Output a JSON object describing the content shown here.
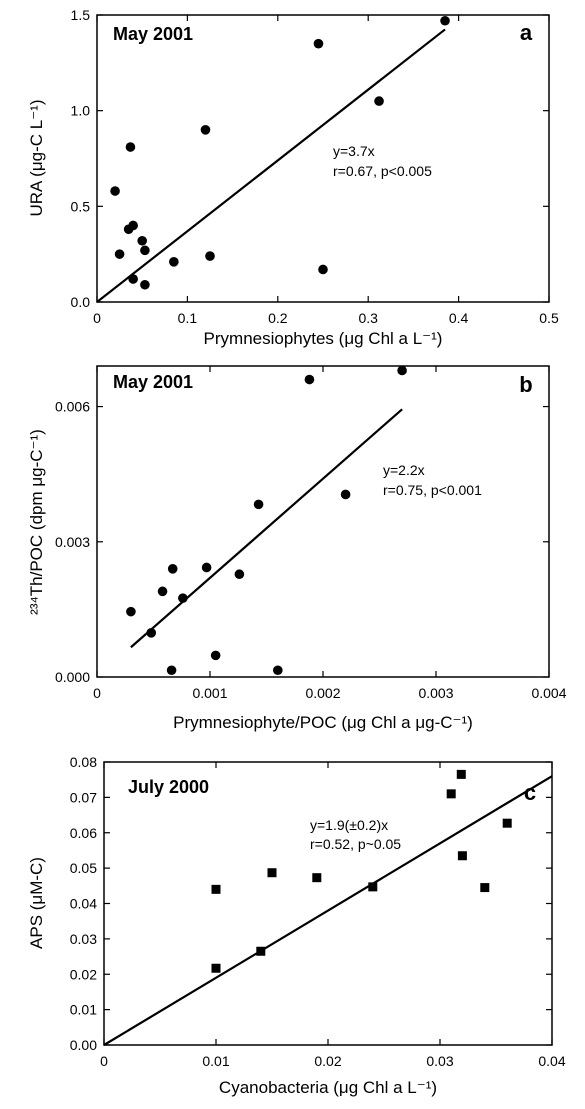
{
  "chart_data": [
    {
      "id": "a",
      "type": "scatter",
      "panel_letter": "a",
      "date_label": "May 2001",
      "xlabel": "Prymnesiophytes (μg Chl a L⁻¹)",
      "ylabel": "URA (μg-C L⁻¹)",
      "xlim": [
        0,
        0.5
      ],
      "ylim": [
        0,
        1.5
      ],
      "xticks": [
        0,
        0.1,
        0.2,
        0.3,
        0.4,
        0.5
      ],
      "xtick_labels": [
        "0",
        "0.1",
        "0.2",
        "0.3",
        "0.4",
        "0.5"
      ],
      "yticks": [
        0,
        0.5,
        1.0,
        1.5
      ],
      "ytick_labels": [
        "0.0",
        "0.5",
        "1.0",
        "1.5"
      ],
      "marker": "circle",
      "points": [
        [
          0.02,
          0.58
        ],
        [
          0.025,
          0.25
        ],
        [
          0.035,
          0.38
        ],
        [
          0.037,
          0.81
        ],
        [
          0.04,
          0.12
        ],
        [
          0.04,
          0.4
        ],
        [
          0.05,
          0.32
        ],
        [
          0.053,
          0.27
        ],
        [
          0.053,
          0.09
        ],
        [
          0.085,
          0.21
        ],
        [
          0.12,
          0.9
        ],
        [
          0.125,
          0.24
        ],
        [
          0.245,
          1.35
        ],
        [
          0.25,
          0.17
        ],
        [
          0.312,
          1.05
        ],
        [
          0.385,
          1.47
        ]
      ],
      "fit": {
        "slope": 3.7,
        "x_range": [
          0,
          0.385
        ]
      },
      "annotation": [
        "y=3.7x",
        "r=0.67, p<0.005"
      ]
    },
    {
      "id": "b",
      "type": "scatter",
      "panel_letter": "b",
      "date_label": "May 2001",
      "xlabel": "Prymnesiophyte/POC (μg Chl a μg-C⁻¹)",
      "ylabel": "²³⁴Th/POC (dpm μg-C⁻¹)",
      "xlim": [
        0,
        0.004
      ],
      "ylim": [
        0,
        0.0069
      ],
      "xticks": [
        0,
        0.001,
        0.002,
        0.003,
        0.004
      ],
      "xtick_labels": [
        "0",
        "0.001",
        "0.002",
        "0.003",
        "0.004"
      ],
      "yticks": [
        0,
        0.003,
        0.006
      ],
      "ytick_labels": [
        "0.000",
        "0.003",
        "0.006"
      ],
      "marker": "circle",
      "points": [
        [
          0.0003,
          0.00145
        ],
        [
          0.00048,
          0.00098
        ],
        [
          0.00058,
          0.0019
        ],
        [
          0.00066,
          0.00015
        ],
        [
          0.00067,
          0.0024
        ],
        [
          0.00076,
          0.00175
        ],
        [
          0.00097,
          0.00243
        ],
        [
          0.00105,
          0.00048
        ],
        [
          0.00126,
          0.00228
        ],
        [
          0.00143,
          0.00383
        ],
        [
          0.0016,
          0.00015
        ],
        [
          0.00188,
          0.0066
        ],
        [
          0.0022,
          0.00405
        ],
        [
          0.0027,
          0.0068
        ]
      ],
      "fit": {
        "slope": 2.2,
        "x_range": [
          0.0003,
          0.0027
        ]
      },
      "annotation": [
        "y=2.2x",
        "r=0.75, p<0.001"
      ]
    },
    {
      "id": "c",
      "type": "scatter",
      "panel_letter": "c",
      "date_label": "July 2000",
      "xlabel": "Cyanobacteria (μg Chl a L⁻¹)",
      "ylabel": "APS (μM-C)",
      "xlim": [
        0,
        0.04
      ],
      "ylim": [
        0,
        0.08
      ],
      "xticks": [
        0,
        0.01,
        0.02,
        0.03,
        0.04
      ],
      "xtick_labels": [
        "0",
        "0.01",
        "0.02",
        "0.03",
        "0.04"
      ],
      "yticks": [
        0,
        0.01,
        0.02,
        0.03,
        0.04,
        0.05,
        0.06,
        0.07,
        0.08
      ],
      "ytick_labels": [
        "0.00",
        "0.01",
        "0.02",
        "0.03",
        "0.04",
        "0.05",
        "0.06",
        "0.07",
        "0.08"
      ],
      "marker": "square",
      "points": [
        [
          0.01,
          0.044
        ],
        [
          0.01,
          0.0217
        ],
        [
          0.014,
          0.0265
        ],
        [
          0.015,
          0.0487
        ],
        [
          0.019,
          0.0473
        ],
        [
          0.024,
          0.0447
        ],
        [
          0.031,
          0.071
        ],
        [
          0.0319,
          0.0765
        ],
        [
          0.032,
          0.0535
        ],
        [
          0.034,
          0.0445
        ],
        [
          0.036,
          0.0627
        ]
      ],
      "fit": {
        "slope": 1.9,
        "x_range": [
          0,
          0.04
        ]
      },
      "annotation": [
        "y=1.9(±0.2)x",
        "r=0.52, p~0.05"
      ]
    }
  ]
}
